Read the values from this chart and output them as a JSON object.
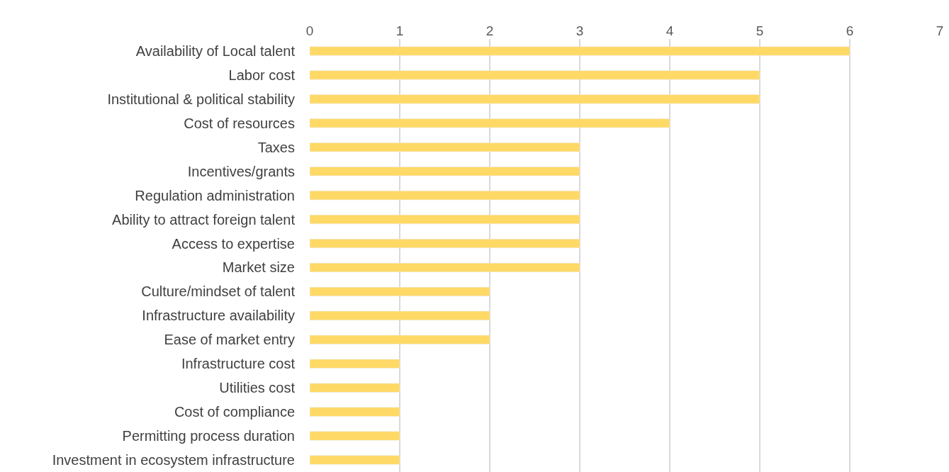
{
  "chart_data": {
    "type": "bar",
    "orientation": "horizontal",
    "categories": [
      "Availability of Local talent",
      "Labor cost",
      "Institutional & political stability",
      "Cost of resources",
      "Taxes",
      "Incentives/grants",
      "Regulation administration",
      "Ability to attract foreign talent",
      "Access to expertise",
      "Market size",
      "Culture/mindset of talent",
      "Infrastructure availability",
      "Ease of market entry",
      "Infrastructure cost",
      "Utilities cost",
      "Cost of compliance",
      "Permitting process duration",
      "Investment in ecosystem infrastructure"
    ],
    "values": [
      6,
      5,
      5,
      4,
      3,
      3,
      3,
      3,
      3,
      3,
      2,
      2,
      2,
      1,
      1,
      1,
      1,
      1
    ],
    "color": "#ffd966",
    "xlim": [
      0,
      7
    ],
    "xticks": [
      0,
      1,
      2,
      3,
      4,
      5,
      6,
      7
    ],
    "grid": "x",
    "legend": false
  }
}
